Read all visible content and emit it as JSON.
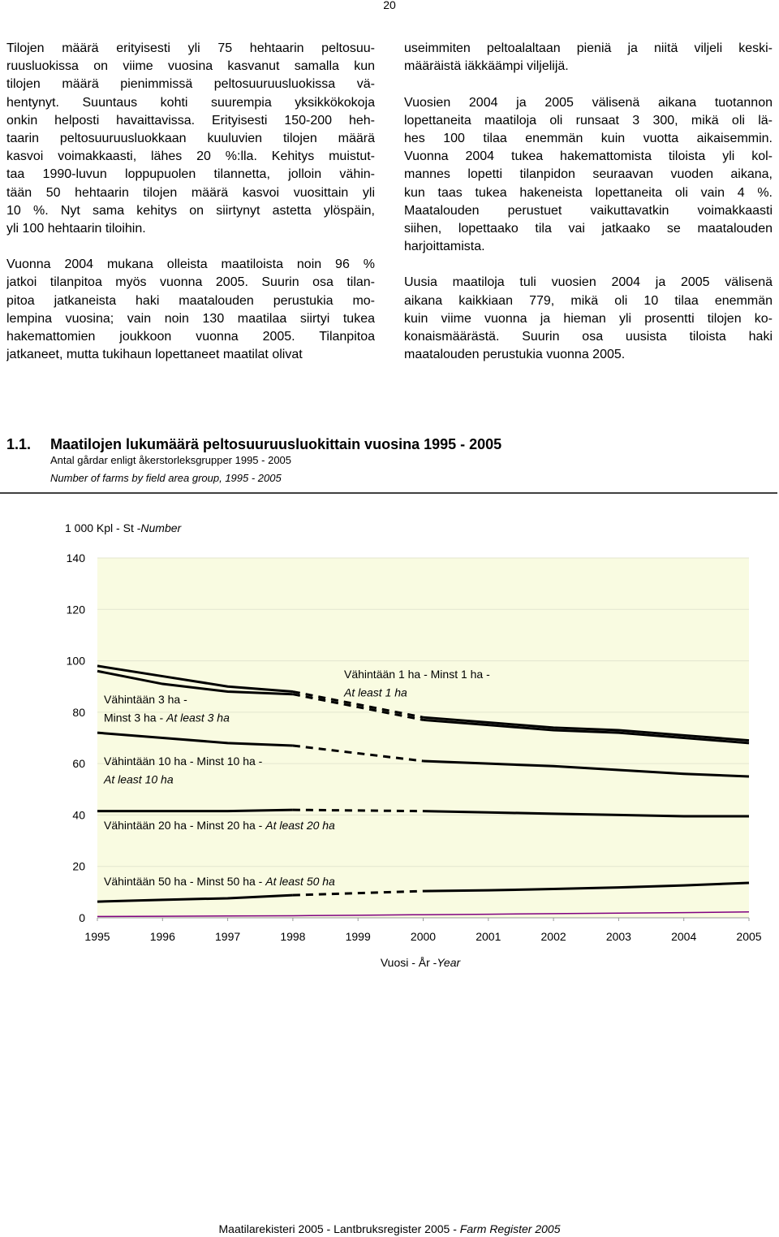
{
  "page_number": "20",
  "left_column": {
    "paragraphs": [
      [
        "Tilojen määrä erityisesti yli 75 hehtaarin peltosuu-",
        "ruusluokissa on viime vuosina kasvanut samalla kun",
        "tilojen määrä pienimmissä peltosuuruusluokissa vä-",
        "hentynyt. Suuntaus kohti suurempia yksikkökokoja",
        "onkin helposti havaittavissa. Erityisesti 150-200 heh-",
        "taarin peltosuuruusluokkaan kuuluvien tilojen määrä",
        "kasvoi voimakkaasti, lähes 20 %:lla. Kehitys muistut-",
        "taa 1990-luvun loppupuolen tilannetta, jolloin vähin-",
        "tään 50 hehtaarin tilojen määrä kasvoi vuosittain yli",
        "10 %. Nyt sama kehitys on siirtynyt astetta ylöspäin,",
        "yli 100 hehtaarin tiloihin."
      ],
      [
        "Vuonna 2004 mukana olleista maatiloista noin 96 %",
        "jatkoi tilanpitoa myös vuonna 2005. Suurin osa tilan-",
        "pitoa jatkaneista haki maatalouden perustukia mo-",
        "lempina vuosina; vain noin 130 maatilaa siirtyi tukea",
        "hakemattomien joukkoon vuonna 2005. Tilanpitoa",
        "jatkaneet, mutta tukihaun lopettaneet maatilat olivat"
      ]
    ]
  },
  "right_column": {
    "paragraphs": [
      [
        "useimmiten peltoalaltaan pieniä ja niitä viljeli keski-",
        "määräistä iäkkäämpi viljelijä."
      ],
      [
        "Vuosien 2004 ja 2005 välisenä aikana tuotannon",
        "lopettaneita maatiloja oli runsaat 3 300, mikä oli lä-",
        "hes 100 tilaa enemmän kuin vuotta aikaisemmin.",
        "Vuonna 2004 tukea hakemattomista tiloista yli kol-",
        "mannes lopetti tilanpidon seuraavan vuoden aikana,",
        "kun taas tukea hakeneista lopettaneita oli vain 4 %.",
        "Maatalouden perustuet vaikuttavatkin voimakkaasti",
        "siihen, lopettaako tila vai jatkaako se maatalouden",
        "harjoittamista."
      ],
      [
        "Uusia maatiloja tuli vuosien 2004 ja 2005 välisenä",
        "aikana kaikkiaan 779, mikä oli 10 tilaa enemmän",
        "kuin viime vuonna ja hieman yli prosentti tilojen ko-",
        "konaismäärästä. Suurin osa uusista tiloista haki",
        "maatalouden perustukia vuonna 2005."
      ]
    ]
  },
  "section": {
    "number": "1.1.",
    "title": "Maatilojen lukumäärä peltosuuruusluokittain vuosina 1995 - 2005",
    "subtitle_sv": "Antal gårdar enligt åkerstorleksgrupper 1995 - 2005",
    "subtitle_en": "Number of farms by field area group, 1995 - 2005"
  },
  "chart_data": {
    "type": "line",
    "y_axis_label": {
      "text": "1 000 Kpl - St -",
      "italic": "Number"
    },
    "x_axis_label": {
      "text": "Vuosi - År -",
      "italic": "Year"
    },
    "x": [
      1995,
      1996,
      1997,
      1998,
      1999,
      2000,
      2001,
      2002,
      2003,
      2004,
      2005
    ],
    "xlim": [
      1995,
      2005
    ],
    "xticks": [
      1995,
      1996,
      1997,
      1998,
      1999,
      2000,
      2001,
      2002,
      2003,
      2004,
      2005
    ],
    "ylim": [
      0,
      140
    ],
    "yticks": [
      0,
      20,
      40,
      60,
      80,
      100,
      120,
      140
    ],
    "grid": true,
    "plot_background": "#f9fbe1",
    "series": [
      {
        "color": "#000000",
        "values": [
          98,
          94,
          90,
          88,
          null,
          78,
          76,
          74,
          73,
          71,
          69
        ]
      },
      {
        "color": "#000000",
        "values": [
          96,
          91,
          88,
          87,
          null,
          77,
          75,
          73,
          72,
          70,
          68
        ]
      },
      {
        "color": "#000000",
        "values": [
          72,
          70,
          68,
          67,
          null,
          61,
          60,
          59,
          57.5,
          56,
          55
        ]
      },
      {
        "color": "#000000",
        "values": [
          41.5,
          41.5,
          41.5,
          42,
          null,
          41.5,
          41,
          40.5,
          40,
          39.5,
          39.5
        ]
      },
      {
        "color": "#000000",
        "values": [
          6.3,
          7,
          7.6,
          8.8,
          null,
          10.4,
          10.7,
          11.2,
          11.8,
          12.6,
          13.6
        ]
      },
      {
        "color": "#800080",
        "values": [
          0.5,
          0.6,
          0.7,
          0.8,
          1,
          1.2,
          1.4,
          1.6,
          1.8,
          2,
          2.3
        ]
      }
    ],
    "annotations": [
      {
        "lines": [
          [
            {
              "text": "Vähintään 1 ha - Minst 1 ha -"
            }
          ],
          [
            {
              "text": "At least 1 ha",
              "italic": true
            }
          ]
        ]
      },
      {
        "lines": [
          [
            {
              "text": "Vähintään 3 ha -"
            }
          ],
          [
            {
              "text": "Minst 3 ha - "
            },
            {
              "text": "At least 3 ha",
              "italic": true
            }
          ]
        ]
      },
      {
        "lines": [
          [
            {
              "text": "Vähintään 10 ha - Minst 10 ha -"
            }
          ],
          [
            {
              "text": "At least 10 ha",
              "italic": true
            }
          ]
        ]
      },
      {
        "lines": [
          [
            {
              "text": "Vähintään 20 ha - Minst 20 ha - "
            },
            {
              "text": "At least 20 ha",
              "italic": true
            }
          ]
        ]
      },
      {
        "lines": [
          [
            {
              "text": "Vähintään 50 ha - Minst 50 ha - "
            },
            {
              "text": "At least 50 ha",
              "italic": true
            }
          ]
        ]
      }
    ]
  },
  "footer": {
    "text": "Maatilarekisteri 2005 - Lantbruksregister 2005 - ",
    "italic": "Farm Register 2005"
  }
}
